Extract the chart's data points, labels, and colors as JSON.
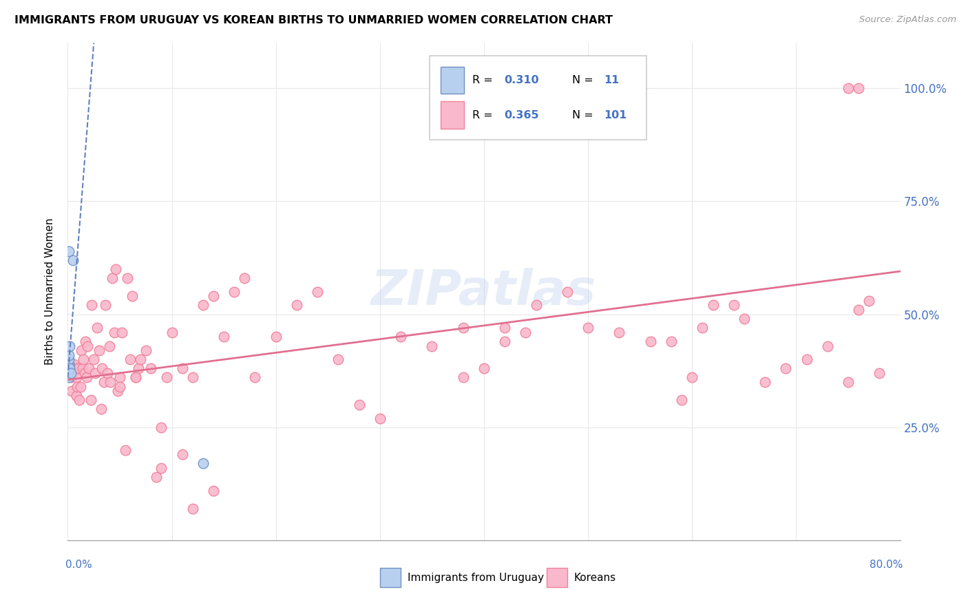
{
  "title": "IMMIGRANTS FROM URUGUAY VS KOREAN BIRTHS TO UNMARRIED WOMEN CORRELATION CHART",
  "source": "Source: ZipAtlas.com",
  "ylabel": "Births to Unmarried Women",
  "background_color": "#ffffff",
  "blue_color": "#4472c4",
  "watermark": "ZIPatlas",
  "xlim": [
    0.0,
    0.8
  ],
  "ylim": [
    0.0,
    1.1
  ],
  "yticks": [
    0.0,
    0.25,
    0.5,
    0.75,
    1.0
  ],
  "ytick_labels": [
    "",
    "25.0%",
    "50.0%",
    "75.0%",
    "100.0%"
  ],
  "korean_scatter_color": "#f9b8cc",
  "korean_scatter_edge": "#f08099",
  "uruguay_scatter_color": "#b8d0f0",
  "uruguay_scatter_edge": "#7090c0",
  "korean_line_color": "#e07090",
  "uruguay_line_color": "#6080c0",
  "korean_x": [
    0.003,
    0.004,
    0.005,
    0.006,
    0.007,
    0.008,
    0.008,
    0.009,
    0.01,
    0.011,
    0.012,
    0.013,
    0.014,
    0.015,
    0.016,
    0.017,
    0.018,
    0.019,
    0.02,
    0.022,
    0.023,
    0.025,
    0.026,
    0.028,
    0.03,
    0.032,
    0.033,
    0.035,
    0.036,
    0.038,
    0.04,
    0.041,
    0.043,
    0.045,
    0.046,
    0.048,
    0.05,
    0.052,
    0.055,
    0.057,
    0.06,
    0.062,
    0.065,
    0.068,
    0.07,
    0.075,
    0.08,
    0.085,
    0.09,
    0.095,
    0.1,
    0.11,
    0.12,
    0.13,
    0.14,
    0.15,
    0.16,
    0.17,
    0.18,
    0.2,
    0.22,
    0.24,
    0.26,
    0.28,
    0.3,
    0.32,
    0.35,
    0.38,
    0.4,
    0.42,
    0.45,
    0.48,
    0.5,
    0.53,
    0.56,
    0.59,
    0.58,
    0.61,
    0.64,
    0.65,
    0.67,
    0.69,
    0.71,
    0.73,
    0.75,
    0.76,
    0.77,
    0.78,
    0.6,
    0.62,
    0.75,
    0.76,
    0.42,
    0.44,
    0.38,
    0.12,
    0.14,
    0.09,
    0.11,
    0.05,
    0.065
  ],
  "korean_y": [
    0.36,
    0.33,
    0.37,
    0.39,
    0.38,
    0.32,
    0.36,
    0.34,
    0.38,
    0.31,
    0.34,
    0.42,
    0.38,
    0.4,
    0.37,
    0.44,
    0.36,
    0.43,
    0.38,
    0.31,
    0.52,
    0.4,
    0.37,
    0.47,
    0.42,
    0.29,
    0.38,
    0.35,
    0.52,
    0.37,
    0.43,
    0.35,
    0.58,
    0.46,
    0.6,
    0.33,
    0.36,
    0.46,
    0.2,
    0.58,
    0.4,
    0.54,
    0.36,
    0.38,
    0.4,
    0.42,
    0.38,
    0.14,
    0.16,
    0.36,
    0.46,
    0.38,
    0.36,
    0.52,
    0.54,
    0.45,
    0.55,
    0.58,
    0.36,
    0.45,
    0.52,
    0.55,
    0.4,
    0.3,
    0.27,
    0.45,
    0.43,
    0.47,
    0.38,
    0.47,
    0.52,
    0.55,
    0.47,
    0.46,
    0.44,
    0.31,
    0.44,
    0.47,
    0.52,
    0.49,
    0.35,
    0.38,
    0.4,
    0.43,
    0.35,
    0.51,
    0.53,
    0.37,
    0.36,
    0.52,
    1.0,
    1.0,
    0.44,
    0.46,
    0.36,
    0.07,
    0.11,
    0.25,
    0.19,
    0.34,
    0.36
  ],
  "uruguay_x": [
    0.001,
    0.001,
    0.001,
    0.001,
    0.001,
    0.001,
    0.002,
    0.002,
    0.003,
    0.005,
    0.13
  ],
  "uruguay_y": [
    0.36,
    0.38,
    0.39,
    0.4,
    0.41,
    0.64,
    0.38,
    0.43,
    0.37,
    0.62,
    0.17
  ],
  "korean_regline_x": [
    0.0,
    0.8
  ],
  "korean_regline_y": [
    0.355,
    0.595
  ],
  "uruguay_regline_x": [
    0.0,
    0.025
  ],
  "uruguay_regline_y": [
    0.36,
    1.1
  ]
}
